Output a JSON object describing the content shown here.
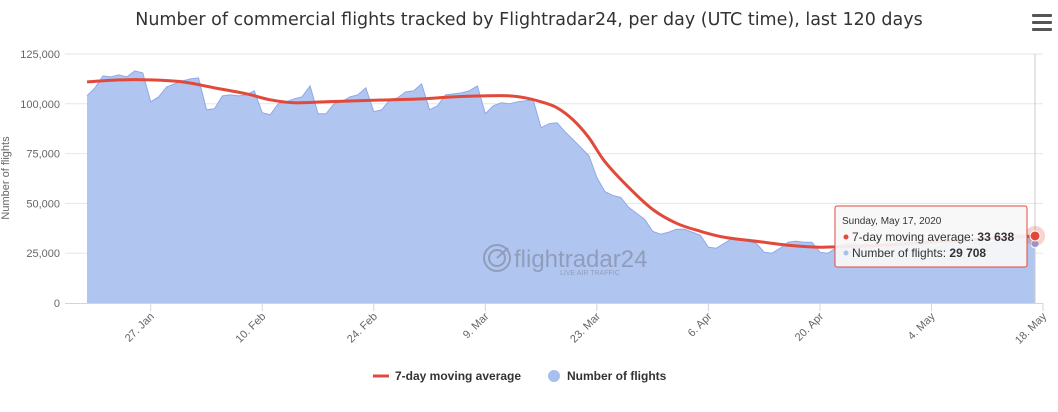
{
  "title": "Number of commercial flights tracked by Flightradar24, per day (UTC time), last 120 days",
  "watermark": {
    "brand": "flightradar24",
    "tagline": "LIVE AIR TRAFFIC"
  },
  "tooltip": {
    "date": "Sunday, May 17, 2020",
    "ma_label": "7-day moving average:",
    "ma_value": "33 638",
    "flights_label": "Number of flights:",
    "flights_value": "29 708"
  },
  "colors": {
    "flights": "#a9bff0",
    "flights_line": "#8ea9e8",
    "moving_average": "#e14a3b",
    "grid": "#e6e6e6"
  },
  "chart_data": {
    "type": "area",
    "ylabel": "Number of flights",
    "ylim": [
      0,
      125000
    ],
    "yticks": [
      0,
      25000,
      50000,
      75000,
      100000,
      125000
    ],
    "ytick_labels": [
      "0",
      "25,000",
      "50,000",
      "75,000",
      "100,000",
      "125,000"
    ],
    "xlim": [
      "2020-01-19",
      "2020-05-18"
    ],
    "xticks": [
      "2020-01-27",
      "2020-02-10",
      "2020-02-24",
      "2020-03-09",
      "2020-03-23",
      "2020-04-06",
      "2020-04-20",
      "2020-05-04",
      "2020-05-18"
    ],
    "xtick_labels": [
      "27. Jan",
      "10. Feb",
      "24. Feb",
      "9. Mar",
      "23. Mar",
      "6. Apr",
      "20. Apr",
      "4. May",
      "18. May"
    ],
    "legend": {
      "placement": "bottom-center"
    },
    "series": [
      {
        "name": "7-day moving average",
        "type": "line",
        "points": [
          [
            "2020-01-19",
            111000
          ],
          [
            "2020-01-23",
            112000
          ],
          [
            "2020-01-27",
            112000
          ],
          [
            "2020-01-31",
            111000
          ],
          [
            "2020-02-04",
            108000
          ],
          [
            "2020-02-08",
            105000
          ],
          [
            "2020-02-11",
            102000
          ],
          [
            "2020-02-14",
            100500
          ],
          [
            "2020-02-18",
            101000
          ],
          [
            "2020-02-22",
            101500
          ],
          [
            "2020-02-26",
            102000
          ],
          [
            "2020-03-01",
            102500
          ],
          [
            "2020-03-05",
            103500
          ],
          [
            "2020-03-09",
            104000
          ],
          [
            "2020-03-12",
            104000
          ],
          [
            "2020-03-14",
            103000
          ],
          [
            "2020-03-16",
            101000
          ],
          [
            "2020-03-18",
            98000
          ],
          [
            "2020-03-20",
            92000
          ],
          [
            "2020-03-22",
            83000
          ],
          [
            "2020-03-24",
            71000
          ],
          [
            "2020-03-27",
            58000
          ],
          [
            "2020-03-30",
            47000
          ],
          [
            "2020-04-02",
            40000
          ],
          [
            "2020-04-05",
            36000
          ],
          [
            "2020-04-08",
            33000
          ],
          [
            "2020-04-12",
            31000
          ],
          [
            "2020-04-16",
            29000
          ],
          [
            "2020-04-20",
            28000
          ],
          [
            "2020-04-24",
            28500
          ],
          [
            "2020-04-28",
            29000
          ],
          [
            "2020-05-02",
            30000
          ],
          [
            "2020-05-06",
            31000
          ],
          [
            "2020-05-10",
            32000
          ],
          [
            "2020-05-14",
            33000
          ],
          [
            "2020-05-17",
            33638
          ]
        ]
      },
      {
        "name": "Number of flights",
        "type": "area",
        "points": [
          [
            "2020-01-19",
            104000
          ],
          [
            "2020-01-20",
            108000
          ],
          [
            "2020-01-21",
            114000
          ],
          [
            "2020-01-22",
            113500
          ],
          [
            "2020-01-23",
            114500
          ],
          [
            "2020-01-24",
            113500
          ],
          [
            "2020-01-25",
            116500
          ],
          [
            "2020-01-26",
            115500
          ],
          [
            "2020-01-27",
            101000
          ],
          [
            "2020-01-28",
            103500
          ],
          [
            "2020-01-29",
            108500
          ],
          [
            "2020-01-30",
            110000
          ],
          [
            "2020-01-31",
            111500
          ],
          [
            "2020-02-01",
            112500
          ],
          [
            "2020-02-02",
            113000
          ],
          [
            "2020-02-03",
            97000
          ],
          [
            "2020-02-04",
            97500
          ],
          [
            "2020-02-05",
            104000
          ],
          [
            "2020-02-06",
            104500
          ],
          [
            "2020-02-07",
            104000
          ],
          [
            "2020-02-08",
            104500
          ],
          [
            "2020-02-09",
            106500
          ],
          [
            "2020-02-10",
            95500
          ],
          [
            "2020-02-11",
            94500
          ],
          [
            "2020-02-12",
            100000
          ],
          [
            "2020-02-13",
            101000
          ],
          [
            "2020-02-14",
            102500
          ],
          [
            "2020-02-15",
            103500
          ],
          [
            "2020-02-16",
            109000
          ],
          [
            "2020-02-17",
            95000
          ],
          [
            "2020-02-18",
            95000
          ],
          [
            "2020-02-19",
            100000
          ],
          [
            "2020-02-20",
            101000
          ],
          [
            "2020-02-21",
            103500
          ],
          [
            "2020-02-22",
            104500
          ],
          [
            "2020-02-23",
            108000
          ],
          [
            "2020-02-24",
            96000
          ],
          [
            "2020-02-25",
            97000
          ],
          [
            "2020-02-26",
            102000
          ],
          [
            "2020-02-27",
            103000
          ],
          [
            "2020-02-28",
            106000
          ],
          [
            "2020-02-29",
            106500
          ],
          [
            "2020-03-01",
            110000
          ],
          [
            "2020-03-02",
            97000
          ],
          [
            "2020-03-03",
            99000
          ],
          [
            "2020-03-04",
            104500
          ],
          [
            "2020-03-05",
            105000
          ],
          [
            "2020-03-06",
            105500
          ],
          [
            "2020-03-07",
            106500
          ],
          [
            "2020-03-08",
            109000
          ],
          [
            "2020-03-09",
            95000
          ],
          [
            "2020-03-10",
            99000
          ],
          [
            "2020-03-11",
            100500
          ],
          [
            "2020-03-12",
            100000
          ],
          [
            "2020-03-13",
            101000
          ],
          [
            "2020-03-14",
            101500
          ],
          [
            "2020-03-15",
            102000
          ],
          [
            "2020-03-16",
            88000
          ],
          [
            "2020-03-17",
            90000
          ],
          [
            "2020-03-18",
            90500
          ],
          [
            "2020-03-19",
            86000
          ],
          [
            "2020-03-20",
            82000
          ],
          [
            "2020-03-21",
            78000
          ],
          [
            "2020-03-22",
            74000
          ],
          [
            "2020-03-23",
            63000
          ],
          [
            "2020-03-24",
            56000
          ],
          [
            "2020-03-25",
            54000
          ],
          [
            "2020-03-26",
            53000
          ],
          [
            "2020-03-27",
            48000
          ],
          [
            "2020-03-28",
            45000
          ],
          [
            "2020-03-29",
            42000
          ],
          [
            "2020-03-30",
            36000
          ],
          [
            "2020-03-31",
            34500
          ],
          [
            "2020-04-01",
            35500
          ],
          [
            "2020-04-02",
            37000
          ],
          [
            "2020-04-03",
            37000
          ],
          [
            "2020-04-04",
            35500
          ],
          [
            "2020-04-05",
            34000
          ],
          [
            "2020-04-06",
            28000
          ],
          [
            "2020-04-07",
            27500
          ],
          [
            "2020-04-08",
            30000
          ],
          [
            "2020-04-09",
            32500
          ],
          [
            "2020-04-10",
            32000
          ],
          [
            "2020-04-11",
            31000
          ],
          [
            "2020-04-12",
            30000
          ],
          [
            "2020-04-13",
            25500
          ],
          [
            "2020-04-14",
            25000
          ],
          [
            "2020-04-15",
            27500
          ],
          [
            "2020-04-16",
            30500
          ],
          [
            "2020-04-17",
            31000
          ],
          [
            "2020-04-18",
            30500
          ],
          [
            "2020-04-19",
            30500
          ],
          [
            "2020-04-20",
            25500
          ],
          [
            "2020-04-21",
            25000
          ],
          [
            "2020-04-22",
            27500
          ],
          [
            "2020-04-23",
            29500
          ],
          [
            "2020-04-24",
            30000
          ],
          [
            "2020-04-25",
            29000
          ],
          [
            "2020-04-26",
            30000
          ],
          [
            "2020-04-27",
            26500
          ],
          [
            "2020-04-28",
            27000
          ],
          [
            "2020-04-29",
            29500
          ],
          [
            "2020-04-30",
            31000
          ],
          [
            "2020-05-01",
            31500
          ],
          [
            "2020-05-02",
            30000
          ],
          [
            "2020-05-03",
            30500
          ],
          [
            "2020-05-04",
            27500
          ],
          [
            "2020-05-05",
            28000
          ],
          [
            "2020-05-06",
            31000
          ],
          [
            "2020-05-07",
            32500
          ],
          [
            "2020-05-08",
            33000
          ],
          [
            "2020-05-09",
            32000
          ],
          [
            "2020-05-10",
            31500
          ],
          [
            "2020-05-11",
            29500
          ],
          [
            "2020-05-12",
            30500
          ],
          [
            "2020-05-13",
            33000
          ],
          [
            "2020-05-14",
            34000
          ],
          [
            "2020-05-15",
            34500
          ],
          [
            "2020-05-16",
            34000
          ],
          [
            "2020-05-17",
            29708
          ]
        ]
      }
    ]
  }
}
